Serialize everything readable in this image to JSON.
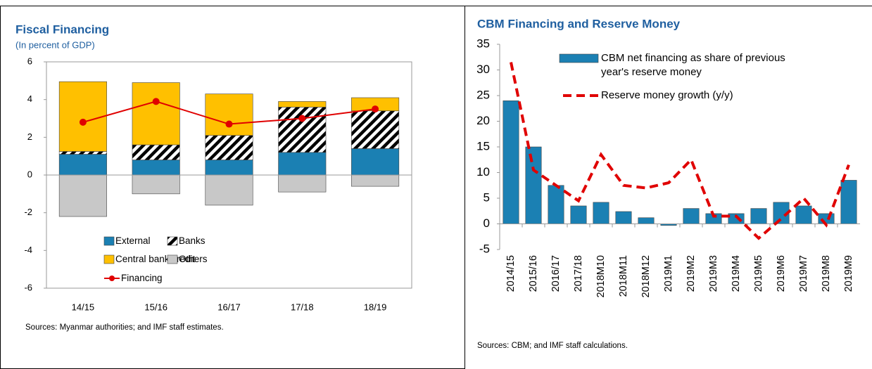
{
  "chart_data": [
    {
      "type": "bar",
      "title": "Fiscal Financing",
      "subtitle": "(In percent of GDP)",
      "note": "Sources: Myanmar authorities; and IMF staff estimates.",
      "categories": [
        "14/15",
        "15/16",
        "16/17",
        "17/18",
        "18/19"
      ],
      "series": [
        {
          "name": "External",
          "color": "#1b80b3",
          "values": [
            1.1,
            0.8,
            0.8,
            1.2,
            1.4
          ]
        },
        {
          "name": "Banks",
          "color": "#000000",
          "values": [
            0.15,
            0.8,
            1.3,
            2.4,
            2.0
          ]
        },
        {
          "name": "Central bank credit",
          "color": "#ffc000",
          "values": [
            3.7,
            3.3,
            2.2,
            0.3,
            0.7
          ]
        },
        {
          "name": "Others",
          "color": "#c8c8c8",
          "values": [
            -2.2,
            -1.0,
            -1.6,
            -0.9,
            -0.6
          ]
        },
        {
          "name": "Financing",
          "type": "line",
          "color": "#e00000",
          "values": [
            2.8,
            3.9,
            2.7,
            3.0,
            3.5
          ]
        }
      ],
      "ylim": [
        -6,
        6
      ],
      "yticks": [
        -6,
        -4,
        -2,
        0,
        2,
        4,
        6
      ],
      "stacked": true
    },
    {
      "type": "bar",
      "title": "CBM Financing and Reserve Money",
      "note": "Sources:  CBM; and IMF staff calculations.",
      "categories": [
        "2014/15",
        "2015/16",
        "2016/17",
        "2017/18",
        "2018M10",
        "2018M11",
        "2018M12",
        "2019M1",
        "2019M2",
        "2019M3",
        "2019M4",
        "2019M5",
        "2019M6",
        "2019M7",
        "2019M8",
        "2019M9"
      ],
      "series": [
        {
          "name": "CBM net financing as share of previous year's reserve money",
          "color": "#1b80b3",
          "values": [
            24,
            15,
            7.5,
            3.5,
            4.2,
            2.4,
            1.2,
            -0.3,
            3.0,
            2.0,
            2.0,
            3.0,
            4.2,
            3.5,
            2.0,
            8.5
          ]
        },
        {
          "name": "Reserve money growth (y/y)",
          "type": "line",
          "dashed": true,
          "color": "#e00000",
          "values": [
            31.5,
            10.5,
            7.5,
            4.5,
            13.5,
            7.5,
            7.0,
            8.0,
            12.5,
            1.5,
            1.5,
            -2.8,
            1.0,
            5.0,
            -0.2,
            11.5
          ]
        }
      ],
      "ylim": [
        -5,
        35
      ],
      "yticks": [
        -5,
        0,
        5,
        10,
        15,
        20,
        25,
        30,
        35
      ]
    }
  ]
}
